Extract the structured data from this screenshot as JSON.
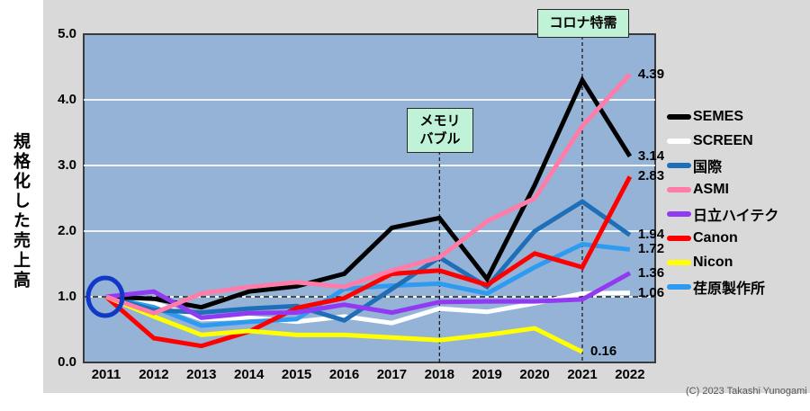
{
  "chart_data": {
    "type": "line",
    "ylabel": "規格化した売上高",
    "ylim": [
      0,
      5
    ],
    "grid": "horizontal",
    "legend_position": "right",
    "baseline_value": 1.0,
    "yticks": [
      "0.0",
      "1.0",
      "2.0",
      "3.0",
      "4.0",
      "5.0"
    ],
    "categories": [
      "2011",
      "2012",
      "2013",
      "2014",
      "2015",
      "2016",
      "2017",
      "2018",
      "2019",
      "2020",
      "2021",
      "2022"
    ],
    "series": [
      {
        "name": "SEMES",
        "color": "#000000",
        "values": [
          1.0,
          0.97,
          0.84,
          1.08,
          1.16,
          1.35,
          2.05,
          2.2,
          1.27,
          2.7,
          4.3,
          3.14
        ],
        "end_label": "3.14"
      },
      {
        "name": "SCREEN",
        "color": "#FFFFFF",
        "values": [
          1.0,
          0.91,
          0.66,
          0.68,
          0.62,
          0.7,
          0.6,
          0.82,
          0.77,
          0.9,
          1.05,
          1.06
        ],
        "end_label": "1.06"
      },
      {
        "name": "国際",
        "color": "#1F6FB8",
        "values": [
          1.0,
          0.8,
          0.76,
          0.82,
          0.86,
          0.64,
          1.12,
          1.6,
          1.15,
          2.0,
          2.45,
          1.94
        ],
        "end_label": "1.94"
      },
      {
        "name": "ASMI",
        "color": "#FF7CA8",
        "values": [
          1.0,
          0.75,
          1.05,
          1.15,
          1.22,
          1.15,
          1.4,
          1.6,
          2.15,
          2.5,
          3.6,
          4.39
        ],
        "end_label": "4.39"
      },
      {
        "name": "日立ハイテク",
        "color": "#9239F3",
        "values": [
          1.0,
          1.08,
          0.68,
          0.75,
          0.76,
          0.88,
          0.76,
          0.92,
          0.93,
          0.93,
          0.96,
          1.36
        ],
        "end_label": "1.36"
      },
      {
        "name": "Canon",
        "color": "#FF0000",
        "values": [
          1.0,
          0.37,
          0.25,
          0.47,
          0.83,
          0.98,
          1.35,
          1.4,
          1.18,
          1.66,
          1.45,
          2.83
        ],
        "end_label": "2.83"
      },
      {
        "name": "Nicon",
        "color": "#FFFF00",
        "values": [
          1.0,
          0.7,
          0.42,
          0.48,
          0.42,
          0.42,
          0.38,
          0.34,
          0.42,
          0.52,
          0.16,
          null
        ],
        "end_label": "0.16"
      },
      {
        "name": "荏原製作所",
        "color": "#2E9BF0",
        "values": [
          1.0,
          0.84,
          0.56,
          0.62,
          0.66,
          1.12,
          1.17,
          1.2,
          1.05,
          1.45,
          1.8,
          1.72
        ],
        "end_label": "1.72"
      }
    ],
    "annotations": [
      {
        "text": "メモリ\nバブル",
        "year": "2018"
      },
      {
        "text": "コロナ特需",
        "year": "2021"
      }
    ],
    "start_marker": {
      "year": "2011",
      "value": 1.0,
      "color": "#1238C8"
    }
  },
  "footer": {
    "copyright": "(C) 2023 Takashi Yunogami"
  }
}
